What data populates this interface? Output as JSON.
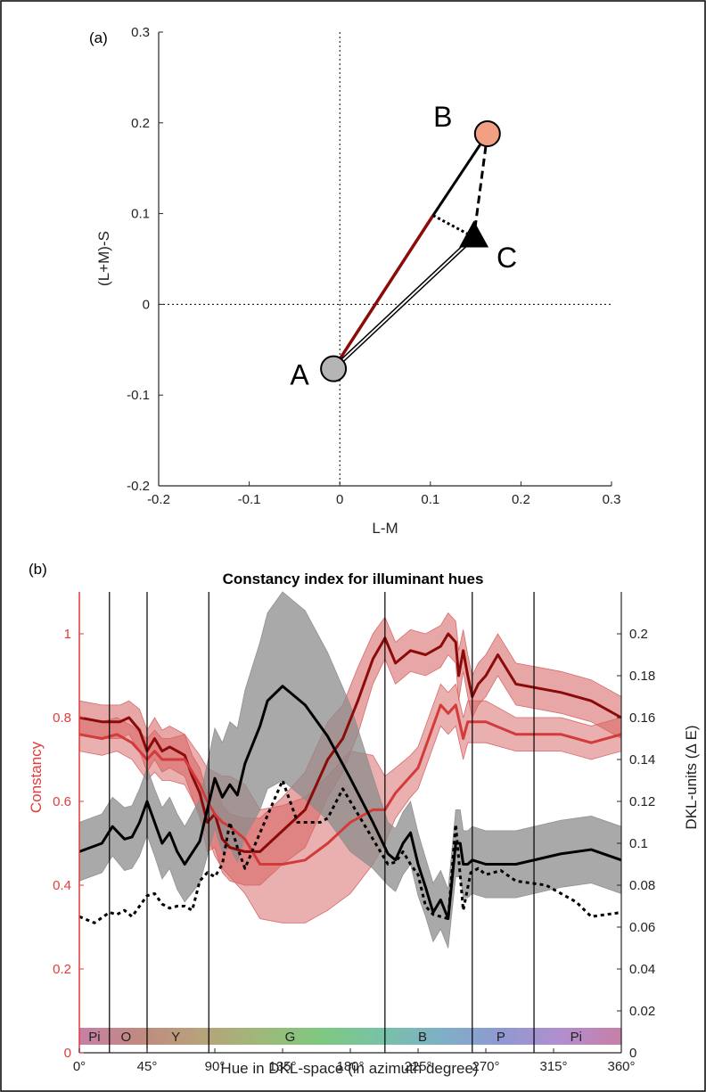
{
  "colors": {
    "red_dark": "#8b0a0a",
    "red_light": "#d33a3a",
    "red_band": "#d65f5f",
    "red_axis": "#e03c3c",
    "gray_band": "#8c8c8c",
    "point_A": "#b5b5b5",
    "point_B": "#f2a083"
  },
  "chart_data": [
    {
      "panel_label": "(a)",
      "type": "scatter",
      "xlabel": "L-M",
      "ylabel": "(L+M)-S",
      "xlim": [
        -0.2,
        0.3
      ],
      "ylim": [
        -0.2,
        0.3
      ],
      "xticks": [
        "-0.2",
        "-0.1",
        "0",
        "0.1",
        "0.2",
        "0.3"
      ],
      "yticks": [
        "-0.2",
        "-0.1",
        "0",
        "0.1",
        "0.2",
        "0.3"
      ],
      "points": [
        {
          "label": "A",
          "x": -0.007,
          "y": -0.071,
          "marker": "circle",
          "color": "#b5b5b5"
        },
        {
          "label": "B",
          "x": 0.163,
          "y": 0.188,
          "marker": "circle",
          "color": "#f2a083"
        },
        {
          "label": "C",
          "x": 0.148,
          "y": 0.074,
          "marker": "triangle",
          "color": "#000000"
        }
      ],
      "segments": [
        {
          "from": [
            -0.007,
            -0.071
          ],
          "to": [
            0.103,
            0.098
          ],
          "style": "red-solid"
        },
        {
          "from": [
            0.103,
            0.098
          ],
          "to": [
            0.163,
            0.188
          ],
          "style": "black-solid"
        },
        {
          "from": [
            0.163,
            0.188
          ],
          "to": [
            0.148,
            0.074
          ],
          "style": "black-dashed"
        },
        {
          "from": [
            0.103,
            0.098
          ],
          "to": [
            0.148,
            0.074
          ],
          "style": "black-dotted"
        },
        {
          "from": [
            -0.007,
            -0.071
          ],
          "to": [
            0.148,
            0.074
          ],
          "style": "double-line"
        }
      ],
      "reference_lines": {
        "x": 0,
        "y": 0,
        "style": "dotted"
      }
    },
    {
      "panel_label": "(b)",
      "type": "line",
      "title": "Constancy index for illuminant hues",
      "xlabel": "Hue in DKL-space (in azimuth degree)",
      "ylabel_left": "Constancy",
      "ylabel_right": "DKL-units (Δ E)",
      "xlim": [
        0,
        360
      ],
      "ylim_left": [
        0,
        1.1
      ],
      "ylim_right": [
        0,
        0.22
      ],
      "xticks": [
        "0°",
        "45°",
        "90°",
        "135°",
        "180°",
        "225°",
        "270°",
        "315°",
        "360°"
      ],
      "yticks_left": [
        "0",
        "0.2",
        "0.4",
        "0.6",
        "0.8",
        "1"
      ],
      "yticks_right": [
        "0",
        "0.02",
        "0.04",
        "0.06",
        "0.08",
        "0.1",
        "0.12",
        "0.14",
        "0.16",
        "0.18",
        "0.2"
      ],
      "boundaries": [
        20,
        45,
        86,
        203,
        261,
        302
      ],
      "hue_regions": [
        {
          "label": "Pi",
          "x": 10,
          "color": "#c77fa7"
        },
        {
          "label": "O",
          "x": 31,
          "color": "#c08a80"
        },
        {
          "label": "Y",
          "x": 64,
          "color": "#b7a27b"
        },
        {
          "label": "G",
          "x": 140,
          "color": "#8cc57d"
        },
        {
          "label": "B",
          "x": 228,
          "color": "#86a3c9"
        },
        {
          "label": "P",
          "x": 280,
          "color": "#a98fd0"
        },
        {
          "label": "Pi",
          "x": 330,
          "color": "#c77fa7"
        }
      ],
      "hue_gradient": [
        "#c77fa7",
        "#c08a80",
        "#b7a27b",
        "#9fb879",
        "#7fc880",
        "#78c2a6",
        "#7eb0c6",
        "#8f99d1",
        "#b28ecf",
        "#c77fa7"
      ],
      "series": [
        {
          "axis": "left",
          "style": "dark-red-solid",
          "band": true,
          "x": [
            0,
            15,
            27,
            33,
            40,
            45,
            50,
            55,
            60,
            65,
            70,
            75,
            80,
            85,
            90,
            95,
            100,
            110,
            120,
            135,
            150,
            165,
            175,
            185,
            195,
            203,
            210,
            220,
            230,
            240,
            245,
            250,
            252,
            255,
            258,
            261,
            265,
            270,
            278,
            290,
            320,
            340,
            360
          ],
          "y": [
            0.8,
            0.79,
            0.79,
            0.8,
            0.77,
            0.72,
            0.75,
            0.72,
            0.73,
            0.72,
            0.71,
            0.66,
            0.62,
            0.55,
            0.57,
            0.51,
            0.49,
            0.48,
            0.48,
            0.53,
            0.58,
            0.7,
            0.75,
            0.84,
            0.94,
            0.99,
            0.93,
            0.96,
            0.95,
            0.97,
            1.0,
            0.98,
            0.9,
            0.96,
            0.9,
            0.85,
            0.88,
            0.9,
            0.95,
            0.88,
            0.86,
            0.84,
            0.8
          ],
          "err": [
            0.04,
            0.04,
            0.04,
            0.04,
            0.05,
            0.05,
            0.05,
            0.05,
            0.05,
            0.05,
            0.05,
            0.05,
            0.06,
            0.07,
            0.08,
            0.08,
            0.08,
            0.08,
            0.08,
            0.08,
            0.09,
            0.09,
            0.08,
            0.08,
            0.06,
            0.05,
            0.05,
            0.05,
            0.05,
            0.05,
            0.05,
            0.05,
            0.06,
            0.05,
            0.05,
            0.05,
            0.05,
            0.05,
            0.05,
            0.05,
            0.05,
            0.05,
            0.05
          ]
        },
        {
          "axis": "left",
          "style": "red-solid",
          "band": true,
          "x": [
            0,
            15,
            25,
            35,
            45,
            50,
            55,
            60,
            70,
            80,
            85,
            90,
            95,
            100,
            110,
            120,
            135,
            150,
            165,
            180,
            195,
            203,
            210,
            220,
            225,
            232,
            240,
            245,
            250,
            255,
            258,
            261,
            270,
            290,
            320,
            340,
            360
          ],
          "y": [
            0.76,
            0.75,
            0.76,
            0.74,
            0.7,
            0.72,
            0.7,
            0.7,
            0.7,
            0.64,
            0.6,
            0.57,
            0.55,
            0.54,
            0.51,
            0.45,
            0.45,
            0.46,
            0.5,
            0.55,
            0.58,
            0.58,
            0.62,
            0.66,
            0.68,
            0.75,
            0.83,
            0.81,
            0.83,
            0.75,
            0.79,
            0.79,
            0.79,
            0.76,
            0.76,
            0.74,
            0.76
          ],
          "err": [
            0.04,
            0.04,
            0.04,
            0.04,
            0.05,
            0.05,
            0.05,
            0.05,
            0.06,
            0.07,
            0.08,
            0.1,
            0.11,
            0.12,
            0.13,
            0.13,
            0.14,
            0.15,
            0.16,
            0.17,
            0.13,
            0.08,
            0.06,
            0.05,
            0.05,
            0.05,
            0.05,
            0.05,
            0.05,
            0.05,
            0.05,
            0.05,
            0.05,
            0.04,
            0.04,
            0.04,
            0.04
          ]
        },
        {
          "axis": "right",
          "style": "black-solid",
          "band": true,
          "x": [
            0,
            15,
            22,
            30,
            35,
            40,
            45,
            50,
            55,
            60,
            65,
            70,
            80,
            90,
            95,
            100,
            105,
            110,
            120,
            125,
            135,
            150,
            165,
            180,
            195,
            205,
            210,
            215,
            220,
            225,
            230,
            235,
            240,
            245,
            250,
            253,
            255,
            258,
            261,
            270,
            290,
            320,
            340,
            360
          ],
          "y": [
            0.096,
            0.1,
            0.108,
            0.102,
            0.103,
            0.11,
            0.12,
            0.11,
            0.1,
            0.105,
            0.096,
            0.09,
            0.101,
            0.131,
            0.122,
            0.128,
            0.123,
            0.138,
            0.156,
            0.168,
            0.175,
            0.166,
            0.151,
            0.131,
            0.11,
            0.095,
            0.092,
            0.1,
            0.105,
            0.09,
            0.079,
            0.067,
            0.073,
            0.064,
            0.1,
            0.1,
            0.09,
            0.09,
            0.092,
            0.09,
            0.09,
            0.095,
            0.097,
            0.092
          ],
          "err": [
            0.014,
            0.014,
            0.014,
            0.015,
            0.015,
            0.016,
            0.016,
            0.016,
            0.017,
            0.017,
            0.018,
            0.018,
            0.02,
            0.024,
            0.026,
            0.03,
            0.032,
            0.035,
            0.04,
            0.042,
            0.045,
            0.045,
            0.04,
            0.035,
            0.022,
            0.015,
            0.015,
            0.015,
            0.015,
            0.015,
            0.014,
            0.014,
            0.014,
            0.014,
            0.016,
            0.016,
            0.016,
            0.016,
            0.016,
            0.016,
            0.016,
            0.016,
            0.016,
            0.016
          ]
        },
        {
          "axis": "right",
          "style": "black-dotted",
          "band": false,
          "x": [
            0,
            10,
            20,
            25,
            30,
            35,
            40,
            45,
            50,
            55,
            60,
            65,
            70,
            75,
            80,
            85,
            90,
            95,
            100,
            105,
            110,
            120,
            135,
            145,
            160,
            165,
            175,
            190,
            205,
            210,
            215,
            220,
            225,
            230,
            235,
            240,
            245,
            250,
            255,
            260,
            265,
            270,
            280,
            290,
            310,
            330,
            340,
            360
          ],
          "y": [
            0.065,
            0.062,
            0.067,
            0.066,
            0.068,
            0.065,
            0.07,
            0.075,
            0.076,
            0.071,
            0.069,
            0.07,
            0.07,
            0.068,
            0.082,
            0.086,
            0.084,
            0.09,
            0.11,
            0.098,
            0.088,
            0.105,
            0.13,
            0.11,
            0.11,
            0.112,
            0.126,
            0.108,
            0.09,
            0.091,
            0.096,
            0.09,
            0.085,
            0.07,
            0.066,
            0.065,
            0.064,
            0.109,
            0.068,
            0.086,
            0.088,
            0.085,
            0.087,
            0.082,
            0.08,
            0.072,
            0.065,
            0.067
          ]
        }
      ]
    }
  ]
}
